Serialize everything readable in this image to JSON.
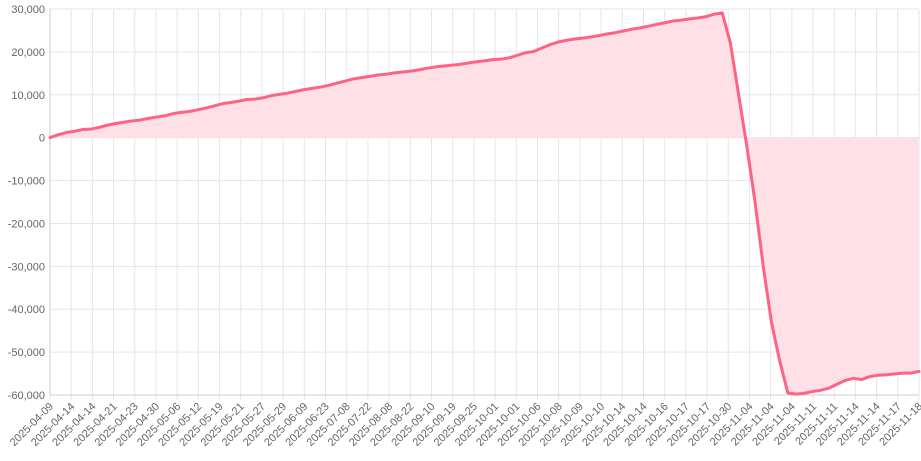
{
  "chart_data": {
    "type": "area",
    "title": "",
    "xlabel": "",
    "ylabel": "",
    "ylim": [
      -60000,
      30000
    ],
    "y_ticks": [
      30000,
      20000,
      10000,
      0,
      -10000,
      -20000,
      -30000,
      -40000,
      -50000,
      -60000
    ],
    "y_tick_labels": [
      "30,000",
      "20,000",
      "10,000",
      "0",
      "-10,000",
      "-20,000",
      "-30,000",
      "-40,000",
      "-50,000",
      "-60,000"
    ],
    "grid": true,
    "legend": "none",
    "colors": {
      "line": "#ff6384",
      "fill": "#ffe0e6",
      "grid": "#e6e6e6",
      "text": "#666666"
    },
    "x_tick_labels": [
      "2025-04-09",
      "2025-04-14",
      "2025-04-14",
      "2025-04-21",
      "2025-04-23",
      "2025-04-30",
      "2025-05-06",
      "2025-05-12",
      "2025-05-19",
      "2025-05-21",
      "2025-05-27",
      "2025-05-29",
      "2025-06-09",
      "2025-06-23",
      "2025-07-08",
      "2025-07-22",
      "2025-08-08",
      "2025-08-22",
      "2025-09-10",
      "2025-09-19",
      "2025-09-25",
      "2025-10-01",
      "2025-10-01",
      "2025-10-06",
      "2025-10-08",
      "2025-10-09",
      "2025-10-10",
      "2025-10-14",
      "2025-10-14",
      "2025-10-16",
      "2025-10-17",
      "2025-10-17",
      "2025-10-30",
      "2025-11-04",
      "2025-11-04",
      "2025-11-04",
      "2025-11-11",
      "2025-11-11",
      "2025-11-14",
      "2025-11-14",
      "2025-11-17",
      "2025-11-18"
    ],
    "series": [
      {
        "values": [
          0,
          700,
          1200,
          1500,
          1900,
          2000,
          2400,
          2900,
          3300,
          3600,
          3900,
          4100,
          4500,
          4800,
          5100,
          5600,
          5900,
          6100,
          6500,
          6900,
          7400,
          7900,
          8200,
          8500,
          8900,
          9000,
          9300,
          9800,
          10100,
          10400,
          10800,
          11200,
          11500,
          11800,
          12200,
          12700,
          13200,
          13700,
          14000,
          14300,
          14600,
          14800,
          15100,
          15300,
          15500,
          15800,
          16200,
          16500,
          16700,
          16900,
          17100,
          17400,
          17700,
          17900,
          18200,
          18300,
          18600,
          19200,
          19800,
          20100,
          20900,
          21700,
          22300,
          22700,
          23000,
          23200,
          23500,
          23800,
          24200,
          24500,
          24900,
          25300,
          25600,
          26000,
          26400,
          26800,
          27200,
          27400,
          27700,
          27900,
          28200,
          28800,
          29100,
          22000,
          10000,
          -2000,
          -15000,
          -30000,
          -43000,
          -52000,
          -59500,
          -59800,
          -59600,
          -59200,
          -58900,
          -58400,
          -57500,
          -56600,
          -56100,
          -56400,
          -55700,
          -55400,
          -55300,
          -55100,
          -54900,
          -54900,
          -54500
        ]
      }
    ]
  }
}
